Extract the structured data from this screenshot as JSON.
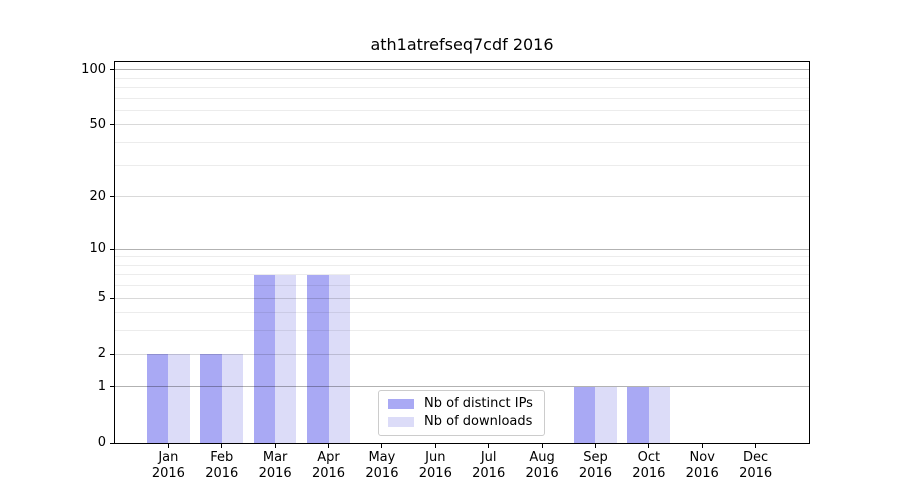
{
  "figure": {
    "background": "#ffffff"
  },
  "chart_data": {
    "type": "bar",
    "title": "ath1atrefseq7cdf 2016",
    "categories": [
      "Jan",
      "Feb",
      "Mar",
      "Apr",
      "May",
      "Jun",
      "Jul",
      "Aug",
      "Sep",
      "Oct",
      "Nov",
      "Dec"
    ],
    "category_year": "2016",
    "series": [
      {
        "name": "Nb of distinct IPs",
        "color": "#a9a9f4",
        "values": [
          2,
          2,
          7,
          7,
          0,
          0,
          0,
          0,
          1,
          1,
          0,
          0
        ]
      },
      {
        "name": "Nb of downloads",
        "color": "#dcdcf8",
        "values": [
          2,
          2,
          7,
          7,
          0,
          0,
          0,
          0,
          1,
          1,
          0,
          0
        ]
      }
    ],
    "yscale": "log1p",
    "ylim": [
      0,
      110
    ],
    "yticks": [
      0,
      1,
      2,
      5,
      10,
      20,
      50,
      100
    ],
    "grid": {
      "on": true,
      "major_values": [
        1,
        10,
        100
      ],
      "mid_values": [
        2,
        5,
        20,
        50
      ],
      "minor_values": [
        3,
        4,
        6,
        7,
        8,
        9,
        30,
        40,
        60,
        70,
        80,
        90
      ]
    },
    "legend": {
      "position": "inside-bottom-center",
      "items": [
        "Nb of distinct IPs",
        "Nb of downloads"
      ]
    },
    "xlabel": "",
    "ylabel": ""
  },
  "colors": {
    "axis": "#000000",
    "grid_major": "#b2b2b2",
    "grid_mid": "#d9d9d9",
    "grid_minor": "#ececec",
    "legend_border": "#cccccc",
    "background": "#ffffff"
  }
}
